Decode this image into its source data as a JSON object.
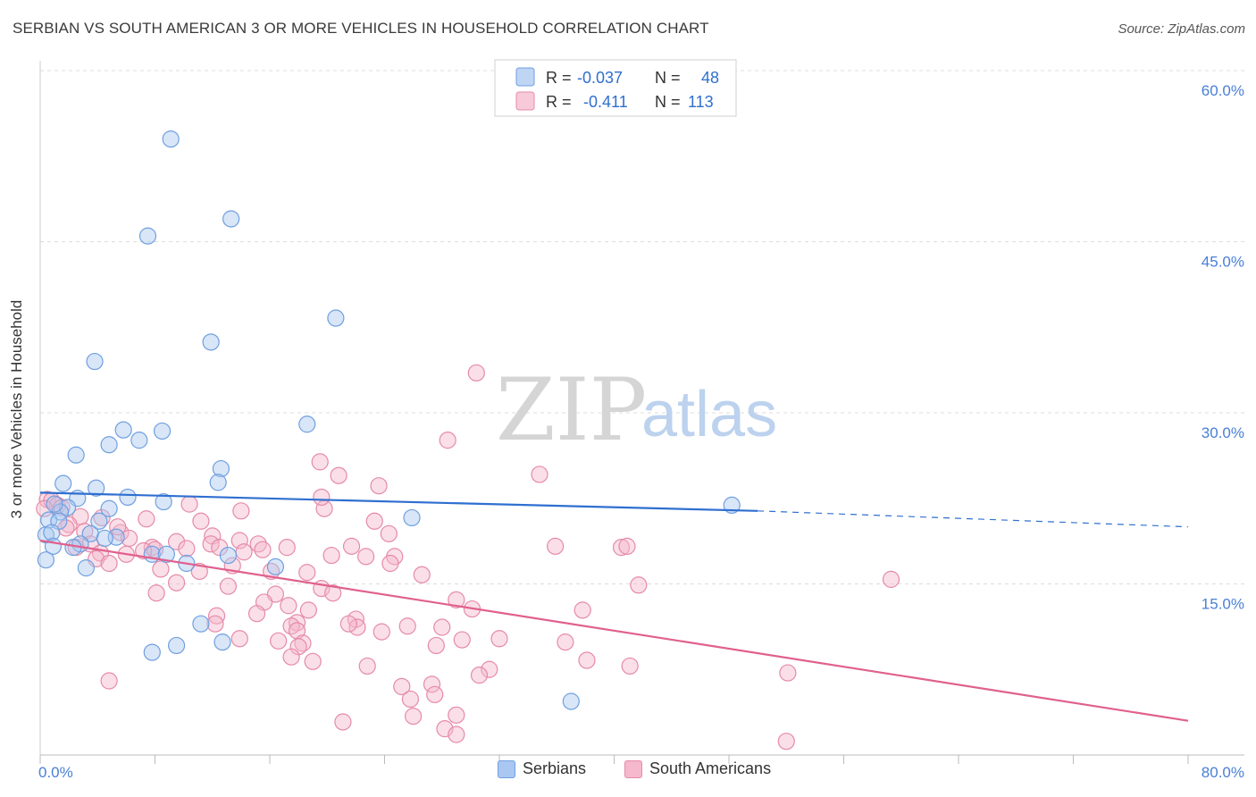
{
  "title": "SERBIAN VS SOUTH AMERICAN 3 OR MORE VEHICLES IN HOUSEHOLD CORRELATION CHART",
  "source": "Source: ZipAtlas.com",
  "watermark": {
    "zip": "ZIP",
    "atlas": "atlas"
  },
  "legend": {
    "rows": [
      {
        "r_label": "R =",
        "r_value": "-0.037",
        "n_label": "N =",
        "n_value": "48"
      },
      {
        "r_label": "R =",
        "r_value": "-0.411",
        "n_label": "N =",
        "n_value": "113"
      }
    ]
  },
  "bottom_legend": [
    "Serbians",
    "South Americans"
  ],
  "colors": {
    "serbians_fill": "#a9c7f0",
    "serbians_stroke": "#6f9fe0",
    "serbians_line": "#2f6fd0",
    "south_fill": "#f5b8cc",
    "south_stroke": "#e68aa8",
    "south_line": "#e0608e",
    "axis_tick": "#4a7fd6",
    "grid": "#dddddd"
  },
  "chart_data": {
    "type": "scatter",
    "title": "SERBIAN VS SOUTH AMERICAN 3 OR MORE VEHICLES IN HOUSEHOLD CORRELATION CHART",
    "xlabel": "",
    "ylabel": "3 or more Vehicles in Household",
    "xlim": [
      0,
      80
    ],
    "ylim": [
      0,
      60
    ],
    "x_tick_labels": [
      "0.0%",
      "80.0%"
    ],
    "y_ticks": [
      15,
      30,
      45,
      60
    ],
    "y_tick_labels": [
      "15.0%",
      "30.0%",
      "45.0%",
      "60.0%"
    ],
    "grid": true,
    "legend_placement": "top-center",
    "series": [
      {
        "name": "Serbians",
        "r": -0.037,
        "n": 48,
        "trend": {
          "x": [
            0,
            50
          ],
          "y": [
            23.0,
            21.4
          ],
          "dashed_to": [
            80,
            20.0
          ]
        },
        "points": [
          [
            9.1,
            54.0
          ],
          [
            13.3,
            47.0
          ],
          [
            7.5,
            45.5
          ],
          [
            20.6,
            38.3
          ],
          [
            11.9,
            36.2
          ],
          [
            3.8,
            34.5
          ],
          [
            18.6,
            29.0
          ],
          [
            5.8,
            28.5
          ],
          [
            8.5,
            28.4
          ],
          [
            4.8,
            27.2
          ],
          [
            6.9,
            27.6
          ],
          [
            2.5,
            26.3
          ],
          [
            12.6,
            25.1
          ],
          [
            1.6,
            23.8
          ],
          [
            3.9,
            23.4
          ],
          [
            12.4,
            23.9
          ],
          [
            2.6,
            22.5
          ],
          [
            6.1,
            22.6
          ],
          [
            8.6,
            22.2
          ],
          [
            1.9,
            21.7
          ],
          [
            4.8,
            21.6
          ],
          [
            1.4,
            21.3
          ],
          [
            0.6,
            20.6
          ],
          [
            1.3,
            20.5
          ],
          [
            4.1,
            20.5
          ],
          [
            25.9,
            20.8
          ],
          [
            48.2,
            21.9
          ],
          [
            0.4,
            19.3
          ],
          [
            0.8,
            19.5
          ],
          [
            3.5,
            19.4
          ],
          [
            5.3,
            19.1
          ],
          [
            4.5,
            19.0
          ],
          [
            0.9,
            18.3
          ],
          [
            2.8,
            18.5
          ],
          [
            2.3,
            18.2
          ],
          [
            7.8,
            17.6
          ],
          [
            8.8,
            17.6
          ],
          [
            13.1,
            17.5
          ],
          [
            0.4,
            17.1
          ],
          [
            10.2,
            16.8
          ],
          [
            3.2,
            16.4
          ],
          [
            16.4,
            16.5
          ],
          [
            11.2,
            11.5
          ],
          [
            12.7,
            9.9
          ],
          [
            9.5,
            9.6
          ],
          [
            7.8,
            9.0
          ],
          [
            37.0,
            4.7
          ],
          [
            1.0,
            22.0
          ]
        ]
      },
      {
        "name": "South Americans",
        "r": -0.411,
        "n": 113,
        "trend": {
          "x": [
            0,
            80
          ],
          "y": [
            18.8,
            3.0
          ]
        },
        "points": [
          [
            30.4,
            33.5
          ],
          [
            28.4,
            27.6
          ],
          [
            19.5,
            25.7
          ],
          [
            20.8,
            24.5
          ],
          [
            34.8,
            24.6
          ],
          [
            23.6,
            23.6
          ],
          [
            0.5,
            22.4
          ],
          [
            0.8,
            22.3
          ],
          [
            1.2,
            21.9
          ],
          [
            1.5,
            21.7
          ],
          [
            10.4,
            22.0
          ],
          [
            14.0,
            21.4
          ],
          [
            19.8,
            21.6
          ],
          [
            2.8,
            20.9
          ],
          [
            7.4,
            20.7
          ],
          [
            4.3,
            20.8
          ],
          [
            11.2,
            20.5
          ],
          [
            23.3,
            20.5
          ],
          [
            3.1,
            19.6
          ],
          [
            5.6,
            19.5
          ],
          [
            12.0,
            19.2
          ],
          [
            13.9,
            18.8
          ],
          [
            24.3,
            19.4
          ],
          [
            6.2,
            19.0
          ],
          [
            9.5,
            18.7
          ],
          [
            11.9,
            18.5
          ],
          [
            15.2,
            18.5
          ],
          [
            2.5,
            18.2
          ],
          [
            3.5,
            18.5
          ],
          [
            7.8,
            18.2
          ],
          [
            8.0,
            18.0
          ],
          [
            10.2,
            18.1
          ],
          [
            12.5,
            18.2
          ],
          [
            17.2,
            18.2
          ],
          [
            21.7,
            18.3
          ],
          [
            4.2,
            17.7
          ],
          [
            6.0,
            17.6
          ],
          [
            7.2,
            17.9
          ],
          [
            14.2,
            17.8
          ],
          [
            20.3,
            17.5
          ],
          [
            22.7,
            17.4
          ],
          [
            24.7,
            17.4
          ],
          [
            35.9,
            18.3
          ],
          [
            40.5,
            18.2
          ],
          [
            40.9,
            18.3
          ],
          [
            3.9,
            17.2
          ],
          [
            4.8,
            16.8
          ],
          [
            13.4,
            16.6
          ],
          [
            24.4,
            16.8
          ],
          [
            11.1,
            16.1
          ],
          [
            8.4,
            16.3
          ],
          [
            16.1,
            16.1
          ],
          [
            18.6,
            16.0
          ],
          [
            26.6,
            15.8
          ],
          [
            59.3,
            15.4
          ],
          [
            9.5,
            15.1
          ],
          [
            13.1,
            14.8
          ],
          [
            41.7,
            14.9
          ],
          [
            19.6,
            14.6
          ],
          [
            8.1,
            14.2
          ],
          [
            20.4,
            14.2
          ],
          [
            16.4,
            14.1
          ],
          [
            29.0,
            13.6
          ],
          [
            15.6,
            13.4
          ],
          [
            17.3,
            13.1
          ],
          [
            30.1,
            12.8
          ],
          [
            18.7,
            12.7
          ],
          [
            37.8,
            12.7
          ],
          [
            15.1,
            12.4
          ],
          [
            12.3,
            12.2
          ],
          [
            22.0,
            11.9
          ],
          [
            12.2,
            11.5
          ],
          [
            17.9,
            11.6
          ],
          [
            22.1,
            11.2
          ],
          [
            21.5,
            11.5
          ],
          [
            25.6,
            11.3
          ],
          [
            28.0,
            11.2
          ],
          [
            17.5,
            11.3
          ],
          [
            17.9,
            10.9
          ],
          [
            23.8,
            10.8
          ],
          [
            13.9,
            10.2
          ],
          [
            16.6,
            10.0
          ],
          [
            18.3,
            9.8
          ],
          [
            29.4,
            10.1
          ],
          [
            32.0,
            10.2
          ],
          [
            36.6,
            9.9
          ],
          [
            18.0,
            9.5
          ],
          [
            27.6,
            9.6
          ],
          [
            17.5,
            8.6
          ],
          [
            19.0,
            8.2
          ],
          [
            38.1,
            8.3
          ],
          [
            22.8,
            7.8
          ],
          [
            41.1,
            7.8
          ],
          [
            31.3,
            7.5
          ],
          [
            30.6,
            7.0
          ],
          [
            52.1,
            7.2
          ],
          [
            4.8,
            6.5
          ],
          [
            25.2,
            6.0
          ],
          [
            27.3,
            6.2
          ],
          [
            25.8,
            4.9
          ],
          [
            27.5,
            5.3
          ],
          [
            26.0,
            3.4
          ],
          [
            29.0,
            3.5
          ],
          [
            21.1,
            2.9
          ],
          [
            28.2,
            2.3
          ],
          [
            29.0,
            1.8
          ],
          [
            52.0,
            1.2
          ],
          [
            19.6,
            22.6
          ],
          [
            2.0,
            20.2
          ],
          [
            0.3,
            21.6
          ],
          [
            5.4,
            20.0
          ],
          [
            1.8,
            19.9
          ],
          [
            15.5,
            18.0
          ]
        ]
      }
    ]
  }
}
